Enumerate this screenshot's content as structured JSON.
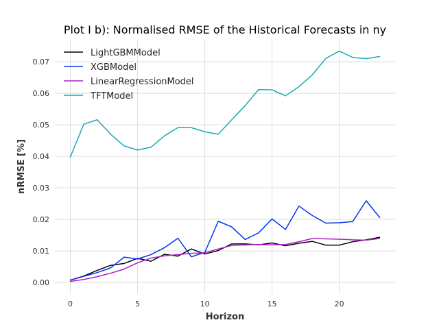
{
  "chart_data": {
    "type": "line",
    "title": "Plot I b): Normalised RMSE of the Historical Forecasts in ny",
    "xlabel": "Horizon",
    "ylabel": "nRMSE [%]",
    "x": [
      0,
      1,
      2,
      3,
      4,
      5,
      6,
      7,
      8,
      9,
      10,
      11,
      12,
      13,
      14,
      15,
      16,
      17,
      18,
      19,
      20,
      21,
      22,
      23
    ],
    "xlim": [
      -1.15,
      24.15
    ],
    "ylim": [
      -0.0035,
      0.077
    ],
    "xticks": [
      0,
      5,
      10,
      15,
      20
    ],
    "xtick_labels": [
      "0",
      "5",
      "10",
      "15",
      "20"
    ],
    "yticks": [
      0.0,
      0.01,
      0.02,
      0.03,
      0.04,
      0.05,
      0.06,
      0.07
    ],
    "ytick_labels": [
      "0.00",
      "0.01",
      "0.02",
      "0.03",
      "0.04",
      "0.05",
      "0.06",
      "0.07"
    ],
    "grid": true,
    "legend_position": "top-left",
    "series": [
      {
        "name": "LightGBMModel",
        "color": "#000000",
        "values": [
          0.0007,
          0.002,
          0.0038,
          0.0054,
          0.006,
          0.0076,
          0.0067,
          0.0089,
          0.0083,
          0.0106,
          0.009,
          0.0101,
          0.0122,
          0.0122,
          0.0119,
          0.0125,
          0.0116,
          0.0124,
          0.013,
          0.0118,
          0.0118,
          0.0129,
          0.0135,
          0.0143
        ]
      },
      {
        "name": "XGBModel",
        "color": "#0033ee",
        "values": [
          0.0007,
          0.0019,
          0.0031,
          0.0046,
          0.008,
          0.0074,
          0.0088,
          0.011,
          0.014,
          0.0081,
          0.0095,
          0.0194,
          0.0176,
          0.0136,
          0.0157,
          0.0201,
          0.0168,
          0.0242,
          0.0212,
          0.0188,
          0.0189,
          0.0193,
          0.0259,
          0.0206
        ]
      },
      {
        "name": "LinearRegressionModel",
        "color": "#b11ccc",
        "values": [
          0.0003,
          0.0009,
          0.0018,
          0.0029,
          0.0042,
          0.0062,
          0.0077,
          0.0084,
          0.0088,
          0.0092,
          0.0094,
          0.0106,
          0.0117,
          0.0119,
          0.012,
          0.0119,
          0.012,
          0.0129,
          0.0139,
          0.0138,
          0.0137,
          0.0135,
          0.0134,
          0.0139
        ]
      },
      {
        "name": "TFTModel",
        "color": "#17aab5",
        "values": [
          0.0398,
          0.0502,
          0.0516,
          0.047,
          0.0433,
          0.042,
          0.0429,
          0.0465,
          0.0491,
          0.0491,
          0.0478,
          0.047,
          0.0516,
          0.0561,
          0.0612,
          0.0611,
          0.0592,
          0.0621,
          0.0659,
          0.0711,
          0.0734,
          0.0714,
          0.071,
          0.0717
        ]
      }
    ]
  }
}
